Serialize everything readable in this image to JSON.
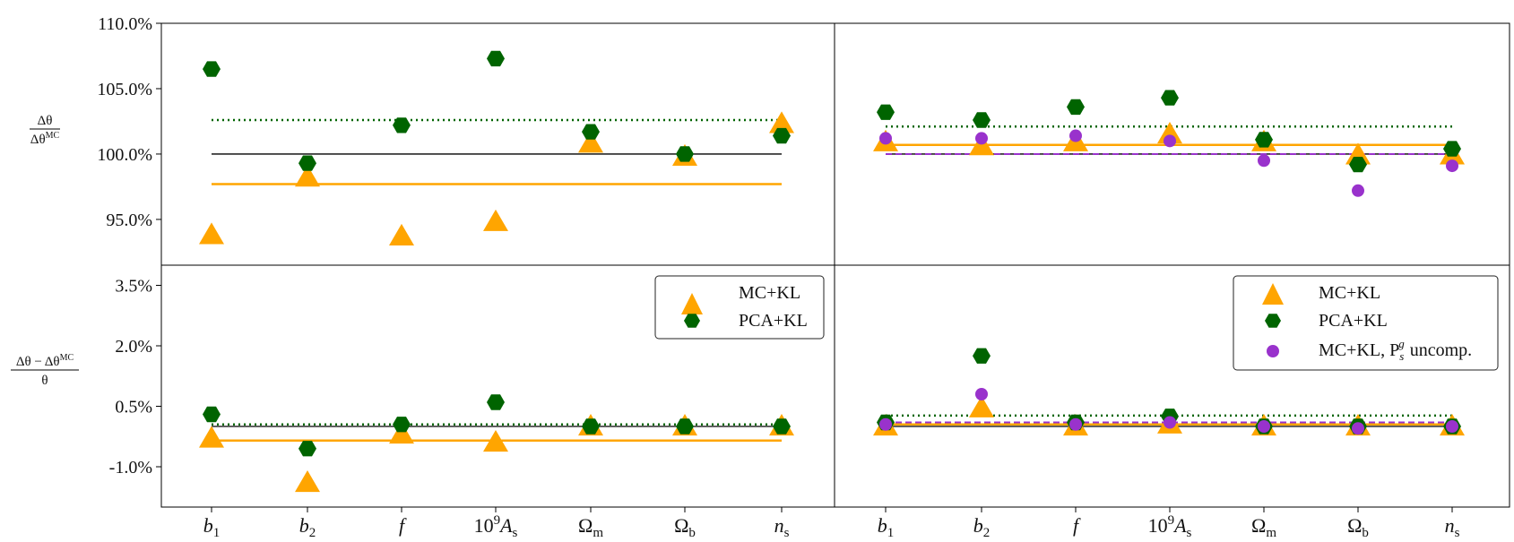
{
  "colors": {
    "mc": "#FFA500",
    "pca": "#006400",
    "unc": "#9932CC",
    "ref": "#000000"
  },
  "categories": [
    {
      "base": "b",
      "sub": "1",
      "italic": true
    },
    {
      "base": "b",
      "sub": "2",
      "italic": true
    },
    {
      "base": "f",
      "sub": "",
      "italic": true
    },
    {
      "base": "10",
      "sup": "9",
      "base2": "A",
      "sub": "s"
    },
    {
      "base": "Ω",
      "sub": "m",
      "italic": false
    },
    {
      "base": "Ω",
      "sub": "b",
      "italic": false
    },
    {
      "base": "n",
      "sub": "s",
      "italic": true
    }
  ],
  "row_labels": {
    "top": {
      "num": "Δθ",
      "den": "Δθ",
      "den_sup": "MC"
    },
    "bottom": {
      "num": "Δθ − Δθ",
      "num_sup": "MC",
      "den": "θ"
    }
  },
  "legends": {
    "left": [
      "MC+KL",
      "PCA+KL"
    ],
    "right": [
      "MC+KL",
      "PCA+KL",
      "MC+KL, P",
      "uncomp."
    ],
    "right_sym": {
      "sub": "s",
      "sup": "g"
    }
  },
  "chart_data": [
    {
      "type": "scatter",
      "panel": "top-left",
      "ylim": [
        91.5,
        110.0
      ],
      "yticks": [
        95.0,
        100.0,
        105.0,
        110.0
      ],
      "ytick_labels": [
        "95.0%",
        "100.0%",
        "105.0%",
        "110.0%"
      ],
      "series": [
        {
          "name": "MC+KL",
          "marker": "triangle",
          "values": [
            93.8,
            98.2,
            93.7,
            94.8,
            100.8,
            99.8,
            102.3
          ],
          "mean": 97.7
        },
        {
          "name": "PCA+KL",
          "marker": "hexagon",
          "values": [
            106.5,
            99.3,
            102.2,
            107.3,
            101.7,
            100.0,
            101.4
          ],
          "mean": 102.6
        }
      ],
      "reference": 100.0
    },
    {
      "type": "scatter",
      "panel": "top-right",
      "ylim": [
        91.5,
        110.0
      ],
      "yticks": [
        95.0,
        100.0,
        105.0,
        110.0
      ],
      "series": [
        {
          "name": "MC+KL",
          "marker": "triangle",
          "values": [
            100.9,
            100.6,
            100.9,
            101.5,
            100.9,
            99.9,
            99.9
          ],
          "mean": 100.7
        },
        {
          "name": "PCA+KL",
          "marker": "hexagon",
          "values": [
            103.2,
            102.6,
            103.6,
            104.3,
            101.1,
            99.2,
            100.4
          ],
          "mean": 102.1
        },
        {
          "name": "MC+KL, P_s^g uncomp.",
          "marker": "circle",
          "values": [
            101.2,
            101.2,
            101.4,
            101.0,
            99.5,
            97.2,
            99.1
          ],
          "mean": 100.0
        }
      ],
      "reference": 100.0
    },
    {
      "type": "scatter",
      "panel": "bottom-left",
      "ylim": [
        -2.0,
        4.0
      ],
      "yticks": [
        -1.0,
        0.5,
        2.0,
        3.5
      ],
      "ytick_labels": [
        "-1.0%",
        "0.5%",
        "2.0%",
        "3.5%"
      ],
      "series": [
        {
          "name": "MC+KL",
          "marker": "triangle",
          "values": [
            -0.3,
            -1.4,
            -0.2,
            -0.4,
            0.0,
            0.0,
            0.0
          ],
          "mean": -0.35
        },
        {
          "name": "PCA+KL",
          "marker": "hexagon",
          "values": [
            0.3,
            -0.55,
            0.05,
            0.6,
            0.0,
            0.0,
            0.0
          ],
          "mean": 0.05
        }
      ],
      "reference": 0.0
    },
    {
      "type": "scatter",
      "panel": "bottom-right",
      "ylim": [
        -2.0,
        4.0
      ],
      "yticks": [
        -1.0,
        0.5,
        2.0,
        3.5
      ],
      "series": [
        {
          "name": "MC+KL",
          "marker": "triangle",
          "values": [
            0.0,
            0.45,
            0.0,
            0.05,
            0.0,
            0.0,
            0.0
          ],
          "mean": 0.05
        },
        {
          "name": "PCA+KL",
          "marker": "hexagon",
          "values": [
            0.1,
            1.75,
            0.1,
            0.25,
            0.0,
            0.0,
            0.0
          ],
          "mean": 0.27
        },
        {
          "name": "MC+KL, P_s^g uncomp.",
          "marker": "circle",
          "values": [
            0.05,
            0.8,
            0.05,
            0.1,
            0.0,
            -0.05,
            0.0
          ],
          "mean": 0.1
        }
      ],
      "reference": 0.0
    }
  ]
}
